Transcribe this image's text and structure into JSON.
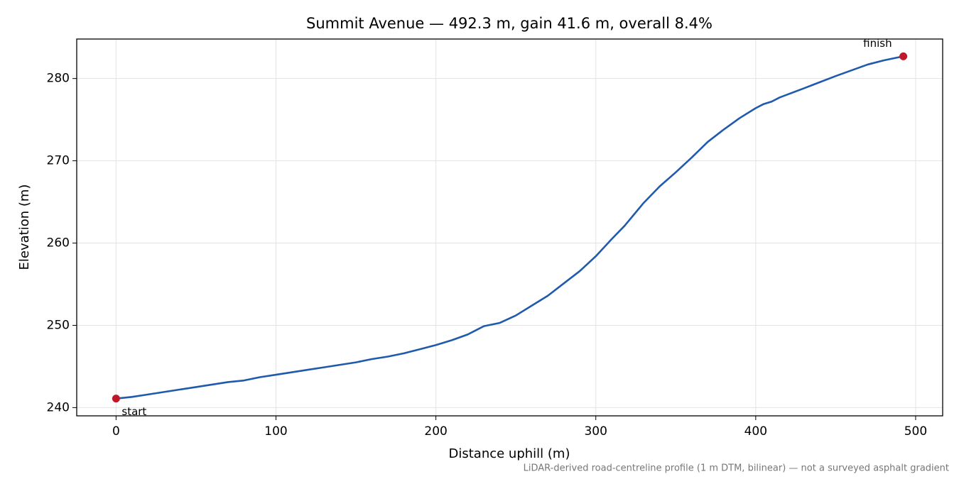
{
  "chart_data": {
    "type": "line",
    "title": "Summit Avenue — 492.3 m, gain 41.6 m, overall 8.4%",
    "x_label": "Distance uphill (m)",
    "y_label": "Elevation (m)",
    "footnote": "LiDAR-derived road-centreline profile (1 m DTM, bilinear) — not a surveyed asphalt gradient",
    "x": [
      0,
      10,
      20,
      30,
      40,
      50,
      60,
      70,
      80,
      90,
      100,
      110,
      120,
      130,
      140,
      150,
      160,
      170,
      180,
      190,
      200,
      210,
      220,
      225,
      230,
      240,
      250,
      260,
      270,
      280,
      290,
      300,
      310,
      318,
      330,
      340,
      350,
      360,
      370,
      380,
      390,
      400,
      405,
      410,
      415,
      430,
      450,
      470,
      480,
      492.3
    ],
    "values": [
      241.1,
      241.3,
      241.6,
      241.9,
      242.2,
      242.5,
      242.8,
      243.1,
      243.3,
      243.7,
      244.0,
      244.3,
      244.6,
      244.9,
      245.2,
      245.5,
      245.9,
      246.2,
      246.6,
      247.1,
      247.6,
      248.2,
      248.9,
      249.4,
      249.9,
      250.3,
      251.2,
      252.4,
      253.6,
      255.1,
      256.6,
      258.4,
      260.5,
      262.1,
      264.9,
      266.9,
      268.6,
      270.4,
      272.3,
      273.8,
      275.2,
      276.4,
      276.9,
      277.2,
      277.7,
      278.8,
      280.3,
      281.7,
      282.2,
      282.7
    ],
    "color": "#1f5aad",
    "endpoints": {
      "x": [
        0,
        492.3
      ],
      "values": [
        241.1,
        282.7
      ],
      "labels": [
        "start",
        "finish"
      ],
      "color": "#c0182a"
    },
    "xlim": [
      -24.6,
      516.9
    ],
    "ylim": [
      239.0,
      284.8
    ],
    "xticks": [
      0,
      100,
      200,
      300,
      400,
      500
    ],
    "yticks": [
      240,
      250,
      260,
      270,
      280
    ],
    "grid": true
  }
}
